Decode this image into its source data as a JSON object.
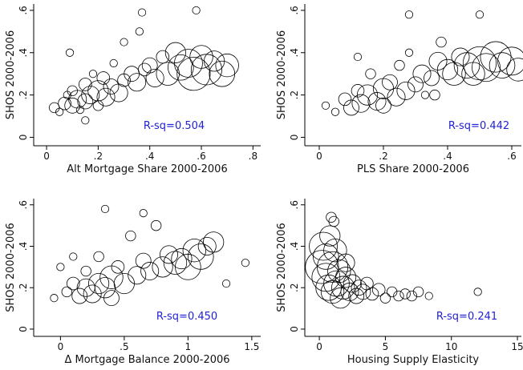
{
  "chart_data": [
    {
      "type": "scatter",
      "xlabel": "Alt Mortgage Share 2000-2006",
      "ylabel": "SHOS 2000-2006",
      "annotation": "R-sq=0.504",
      "xlim": [
        -0.05,
        0.83
      ],
      "ylim": [
        -0.04,
        0.63
      ],
      "xticks": [
        0,
        {
          "value": 0.2,
          "label": ".2"
        },
        {
          "value": 0.4,
          "label": ".4"
        },
        {
          "value": 0.6,
          "label": ".6"
        },
        {
          "value": 0.8,
          "label": ".8"
        }
      ],
      "yticks": [
        0,
        {
          "value": 0.2,
          "label": ".2"
        },
        {
          "value": 0.4,
          "label": ".4"
        },
        {
          "value": 0.6,
          "label": ".6"
        }
      ],
      "x": [
        0.03,
        0.05,
        0.07,
        0.08,
        0.1,
        0.1,
        0.12,
        0.13,
        0.15,
        0.15,
        0.17,
        0.18,
        0.2,
        0.2,
        0.22,
        0.23,
        0.25,
        0.26,
        0.28,
        0.3,
        0.3,
        0.33,
        0.35,
        0.36,
        0.38,
        0.4,
        0.42,
        0.45,
        0.47,
        0.5,
        0.52,
        0.55,
        0.57,
        0.6,
        0.62,
        0.65,
        0.68,
        0.7,
        0.37,
        0.58,
        0.15,
        0.09
      ],
      "y": [
        0.14,
        0.12,
        0.16,
        0.2,
        0.15,
        0.22,
        0.18,
        0.13,
        0.25,
        0.17,
        0.2,
        0.3,
        0.22,
        0.15,
        0.28,
        0.19,
        0.24,
        0.35,
        0.21,
        0.27,
        0.45,
        0.3,
        0.26,
        0.5,
        0.32,
        0.34,
        0.28,
        0.38,
        0.3,
        0.4,
        0.33,
        0.35,
        0.3,
        0.38,
        0.32,
        0.36,
        0.3,
        0.34,
        0.59,
        0.6,
        0.08,
        0.4
      ],
      "sizes": [
        3,
        2,
        4,
        2,
        5,
        3,
        6,
        2,
        4,
        5,
        6,
        2,
        7,
        3,
        4,
        6,
        5,
        2,
        6,
        4,
        2,
        5,
        6,
        2,
        4,
        5,
        6,
        4,
        8,
        7,
        9,
        10,
        12,
        8,
        11,
        7,
        9,
        8,
        2,
        2,
        2,
        2
      ],
      "color": "#000000",
      "annotation_color": "#1f1fd6"
    },
    {
      "type": "scatter",
      "xlabel": "PLS Share 2000-2006",
      "ylabel": "SHOS 2000-2006",
      "annotation": "R-sq=0.442",
      "xlim": [
        -0.045,
        0.63
      ],
      "ylim": [
        -0.04,
        0.63
      ],
      "xticks": [
        0,
        {
          "value": 0.2,
          "label": ".2"
        },
        {
          "value": 0.4,
          "label": ".4"
        },
        {
          "value": 0.6,
          "label": ".6"
        }
      ],
      "yticks": [
        0,
        {
          "value": 0.2,
          "label": ".2"
        },
        {
          "value": 0.4,
          "label": ".4"
        },
        {
          "value": 0.6,
          "label": ".6"
        }
      ],
      "x": [
        0.02,
        0.05,
        0.08,
        0.1,
        0.12,
        0.13,
        0.15,
        0.16,
        0.18,
        0.2,
        0.2,
        0.22,
        0.24,
        0.25,
        0.27,
        0.28,
        0.3,
        0.32,
        0.33,
        0.35,
        0.37,
        0.38,
        0.4,
        0.42,
        0.44,
        0.46,
        0.48,
        0.5,
        0.52,
        0.55,
        0.57,
        0.6,
        0.62,
        0.28,
        0.5,
        0.12,
        0.36
      ],
      "y": [
        0.15,
        0.12,
        0.18,
        0.14,
        0.22,
        0.16,
        0.2,
        0.3,
        0.17,
        0.23,
        0.15,
        0.26,
        0.19,
        0.34,
        0.22,
        0.4,
        0.25,
        0.3,
        0.2,
        0.28,
        0.36,
        0.45,
        0.32,
        0.3,
        0.38,
        0.34,
        0.3,
        0.35,
        0.33,
        0.38,
        0.34,
        0.36,
        0.32,
        0.58,
        0.58,
        0.38,
        0.2
      ],
      "sizes": [
        2,
        2,
        4,
        5,
        4,
        6,
        7,
        3,
        6,
        7,
        5,
        5,
        6,
        3,
        6,
        2,
        5,
        6,
        2,
        5,
        6,
        3,
        7,
        8,
        6,
        9,
        8,
        12,
        10,
        11,
        9,
        10,
        8,
        2,
        2,
        2,
        3
      ],
      "color": "#000000",
      "annotation_color": "#1f1fd6"
    },
    {
      "type": "scatter",
      "xlabel": "Δ Mortgage Balance 2000-2006",
      "ylabel": "SHOS 2000-2006",
      "annotation": "R-sq=0.450",
      "xlim": [
        -0.21,
        1.57
      ],
      "ylim": [
        -0.035,
        0.63
      ],
      "xticks": [
        0,
        {
          "value": 0.5,
          "label": ".5"
        },
        1,
        1.5
      ],
      "yticks": [
        0,
        {
          "value": 0.2,
          "label": ".2"
        },
        {
          "value": 0.4,
          "label": ".4"
        },
        {
          "value": 0.6,
          "label": ".6"
        }
      ],
      "x": [
        -0.05,
        0,
        0.05,
        0.1,
        0.15,
        0.2,
        0.2,
        0.25,
        0.3,
        0.3,
        0.35,
        0.4,
        0.4,
        0.45,
        0.5,
        0.55,
        0.6,
        0.65,
        0.7,
        0.75,
        0.8,
        0.85,
        0.9,
        0.95,
        1.0,
        1.05,
        1.1,
        1.15,
        1.2,
        0.35,
        0.65,
        0.1,
        1.3,
        1.45
      ],
      "y": [
        0.15,
        0.3,
        0.18,
        0.22,
        0.16,
        0.2,
        0.28,
        0.17,
        0.22,
        0.35,
        0.2,
        0.25,
        0.15,
        0.3,
        0.22,
        0.45,
        0.26,
        0.33,
        0.28,
        0.5,
        0.3,
        0.36,
        0.32,
        0.34,
        0.3,
        0.38,
        0.35,
        0.4,
        0.42,
        0.58,
        0.56,
        0.35,
        0.22,
        0.32
      ],
      "sizes": [
        2,
        2,
        3,
        4,
        5,
        6,
        3,
        6,
        7,
        3,
        7,
        8,
        5,
        4,
        7,
        3,
        6,
        5,
        6,
        3,
        7,
        6,
        8,
        7,
        9,
        8,
        9,
        6,
        7,
        2,
        2,
        2,
        2,
        2
      ],
      "color": "#000000",
      "annotation_color": "#1f1fd6"
    },
    {
      "type": "scatter",
      "xlabel": "Housing Supply Elasticity",
      "ylabel": "SHOS 2000-2006",
      "annotation": "R-sq=0.241",
      "xlim": [
        -1.1,
        15.3
      ],
      "ylim": [
        -0.035,
        0.63
      ],
      "xticks": [
        0,
        5,
        10,
        15
      ],
      "yticks": [
        0,
        {
          "value": 0.2,
          "label": ".2"
        },
        {
          "value": 0.4,
          "label": ".4"
        },
        {
          "value": 0.6,
          "label": ".6"
        }
      ],
      "x": [
        0.2,
        0.3,
        0.5,
        0.5,
        0.7,
        0.8,
        1,
        1,
        1.2,
        1.3,
        1.5,
        1.6,
        1.8,
        2,
        2,
        2.3,
        2.5,
        2.8,
        3,
        3.3,
        3.6,
        4,
        4.5,
        5,
        5.5,
        6,
        6.5,
        7,
        7.5,
        8.3,
        12,
        0.9,
        1.1
      ],
      "y": [
        0.3,
        0.4,
        0.25,
        0.35,
        0.2,
        0.45,
        0.3,
        0.18,
        0.38,
        0.22,
        0.28,
        0.15,
        0.2,
        0.25,
        0.32,
        0.18,
        0.22,
        0.16,
        0.2,
        0.18,
        0.22,
        0.17,
        0.19,
        0.15,
        0.18,
        0.16,
        0.17,
        0.16,
        0.18,
        0.16,
        0.18,
        0.54,
        0.52
      ],
      "sizes": [
        12,
        10,
        10,
        9,
        9,
        7,
        11,
        8,
        8,
        9,
        8,
        7,
        8,
        7,
        6,
        6,
        6,
        5,
        5,
        5,
        4,
        4,
        4,
        3,
        3,
        3,
        3,
        3,
        3,
        2,
        2,
        3,
        3
      ],
      "color": "#000000",
      "annotation_color": "#1f1fd6"
    }
  ]
}
